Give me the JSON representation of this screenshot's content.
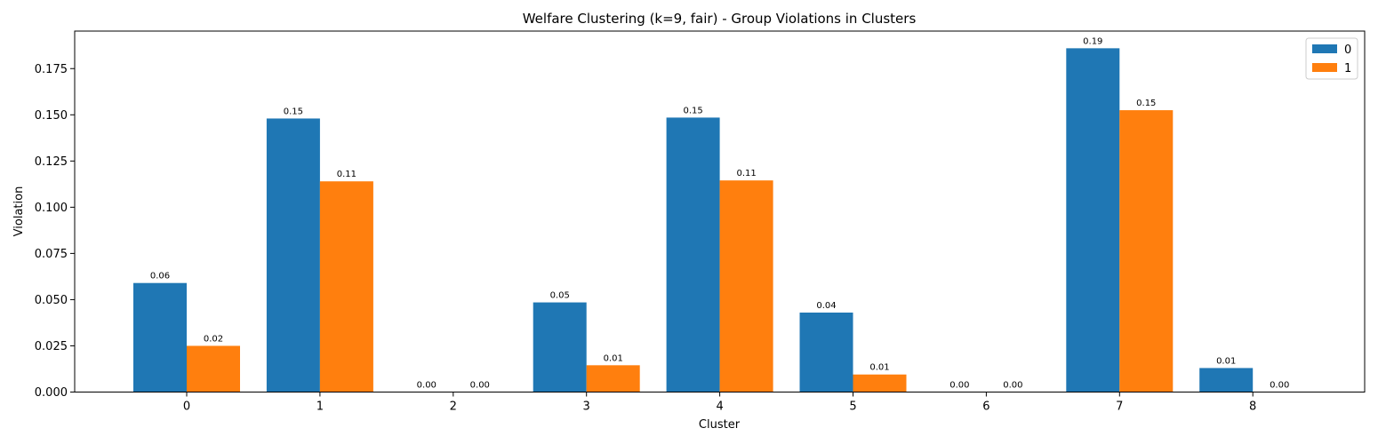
{
  "chart_data": {
    "type": "bar",
    "title": "Welfare Clustering (k=9, fair) - Group Violations in Clusters",
    "xlabel": "Cluster",
    "ylabel": "Violation",
    "categories": [
      "0",
      "1",
      "2",
      "3",
      "4",
      "5",
      "6",
      "7",
      "8"
    ],
    "series": [
      {
        "name": "0",
        "color": "#1f77b4",
        "values": [
          0.059,
          0.148,
          0.0,
          0.0485,
          0.1485,
          0.043,
          0.0,
          0.186,
          0.013
        ],
        "labels": [
          "0.06",
          "0.15",
          "0.00",
          "0.05",
          "0.15",
          "0.04",
          "0.00",
          "0.19",
          "0.01"
        ]
      },
      {
        "name": "1",
        "color": "#ff7f0e",
        "values": [
          0.025,
          0.114,
          0.0,
          0.0145,
          0.1145,
          0.0095,
          0.0,
          0.1525,
          0.0
        ],
        "labels": [
          "0.02",
          "0.11",
          "0.00",
          "0.01",
          "0.11",
          "0.01",
          "0.00",
          "0.15",
          "0.00"
        ]
      }
    ],
    "yticks": [
      0.0,
      0.025,
      0.05,
      0.075,
      0.1,
      0.125,
      0.15,
      0.175
    ],
    "ytick_labels": [
      "0.000",
      "0.025",
      "0.050",
      "0.075",
      "0.100",
      "0.125",
      "0.150",
      "0.175"
    ],
    "ylim": [
      0,
      0.1953
    ],
    "grid": false,
    "legend": "top-right"
  }
}
